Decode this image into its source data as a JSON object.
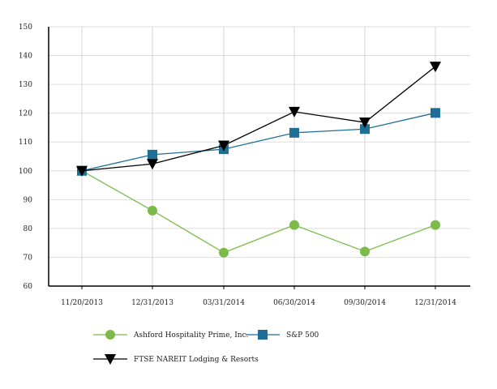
{
  "chart_data": {
    "type": "line",
    "title": "",
    "xlabel": "",
    "ylabel": "",
    "categories": [
      "11/20/2013",
      "12/31/2013",
      "03/31/2014",
      "06/30/2014",
      "09/30/2014",
      "12/31/2014"
    ],
    "category_labels": [
      "11/20/2013",
      "12/31/2013",
      "03/31/2014",
      "06/30/2014",
      "09/30/2014",
      "12/31/2014"
    ],
    "ylim": [
      60,
      150
    ],
    "yticks": [
      60,
      70,
      80,
      90,
      100,
      110,
      120,
      130,
      140,
      150
    ],
    "grid": "vertical",
    "legend_position": "bottom-left",
    "series": [
      {
        "name": "Ashford Hospitality Prime, Inc.",
        "color": "#7cbb4a",
        "marker": "circle",
        "values": [
          100,
          86.2,
          71.6,
          81.2,
          72.0,
          81.2
        ]
      },
      {
        "name": "S&P 500",
        "color": "#1f6e96",
        "marker": "square",
        "values": [
          100,
          105.6,
          107.5,
          113.2,
          114.5,
          120.1
        ]
      },
      {
        "name": "FTSE NAREIT Lodging & Resorts",
        "color": "#000000",
        "marker": "triangle-down",
        "values": [
          100,
          102.4,
          108.8,
          120.5,
          116.8,
          136.2
        ]
      }
    ]
  }
}
